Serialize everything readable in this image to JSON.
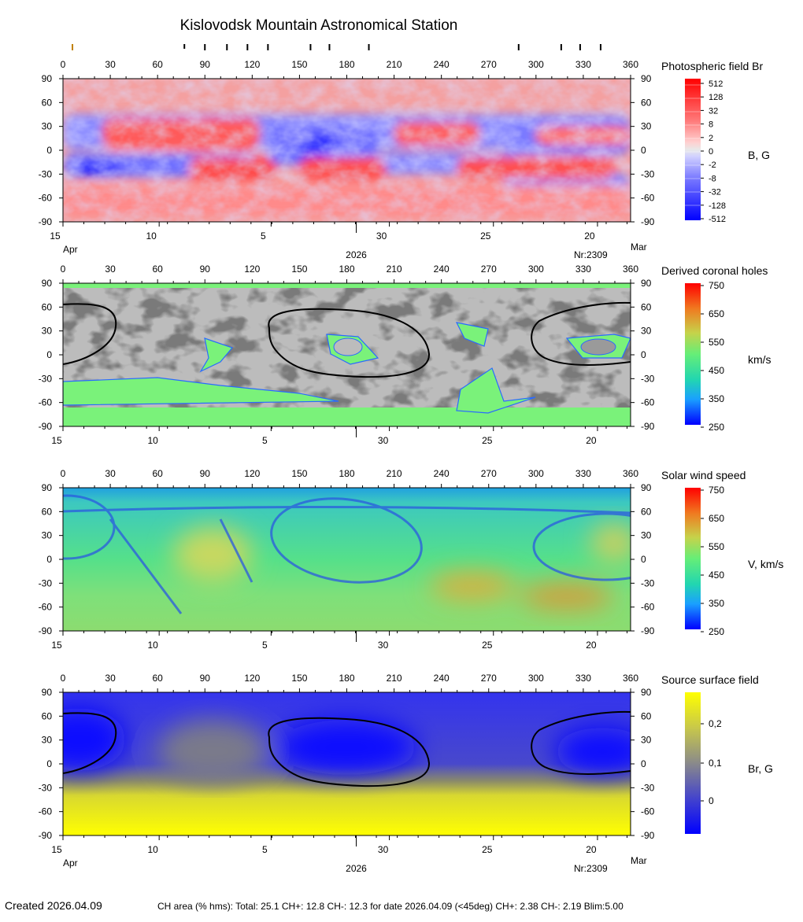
{
  "title": "Kislovodsk Mountain Astronomical Station",
  "year_label": "2026",
  "rotation_label": "Nr:2309",
  "month_left": "Apr",
  "month_right": "Mar",
  "x_ticks": [
    0,
    30,
    60,
    90,
    120,
    150,
    180,
    210,
    240,
    270,
    300,
    330,
    360
  ],
  "y_ticks": [
    90,
    60,
    30,
    0,
    -30,
    -60,
    -90
  ],
  "date_ticks": [
    {
      "label": "15",
      "lon": 0
    },
    {
      "label": "10",
      "lon": 61
    },
    {
      "label": "5",
      "lon": 132
    },
    {
      "label": "30",
      "lon": 207
    },
    {
      "label": "25",
      "lon": 273
    },
    {
      "label": "20",
      "lon": 339
    }
  ],
  "top_marks": [
    6,
    77,
    90,
    104,
    117,
    130,
    157,
    169,
    194,
    289,
    316,
    328,
    341
  ],
  "footer": {
    "created": "Created  2026.04.09",
    "stats": "CH area (% hms): Total: 25.1 CH+: 12.8   CH-: 12.3 for date 2026.04.09 (<45deg) CH+: 2.38    CH-: 2.19 Blim:5.00"
  },
  "chart_data": [
    {
      "type": "heatmap",
      "title": "Photospheric field Br",
      "unit": "B, G",
      "xlim": [
        0,
        360
      ],
      "ylim": [
        -90,
        90
      ],
      "colorbar_ticks": [
        "512",
        "128",
        "32",
        "8",
        "2",
        "0",
        "-2",
        "-8",
        "-32",
        "-128",
        "-512"
      ],
      "colors": {
        "positive": "#ff0000",
        "zero": "#e8e8e8",
        "negative": "#0000ff"
      }
    },
    {
      "type": "heatmap",
      "title": "Derived coronal holes",
      "unit": "km/s",
      "xlim": [
        0,
        360
      ],
      "ylim": [
        -90,
        90
      ],
      "colorbar_ticks": [
        "750",
        "650",
        "550",
        "450",
        "350",
        "250"
      ],
      "colors": {
        "open_field": "#7af27a",
        "closed_light": "#bcbcbc",
        "closed_dark": "#7a7a7a",
        "neutral_line": "#000000"
      }
    },
    {
      "type": "heatmap",
      "title": "Solar wind speed",
      "unit": "V, km/s",
      "xlim": [
        0,
        360
      ],
      "ylim": [
        -90,
        90
      ],
      "colorbar_ticks": [
        "750",
        "650",
        "550",
        "450",
        "350",
        "250"
      ],
      "colors": {
        "low": "#0000ff",
        "mid": "#66ee77",
        "high": "#ff1100"
      }
    },
    {
      "type": "heatmap",
      "title": "Source surface field",
      "unit": "Br, G",
      "xlim": [
        0,
        360
      ],
      "ylim": [
        -90,
        90
      ],
      "colorbar_ticks": [
        "0,2",
        "0,1",
        "0"
      ],
      "colors": {
        "low": "#0000ff",
        "mid": "#8a8a8a",
        "high": "#ffff00",
        "neutral_line": "#000000"
      }
    }
  ]
}
